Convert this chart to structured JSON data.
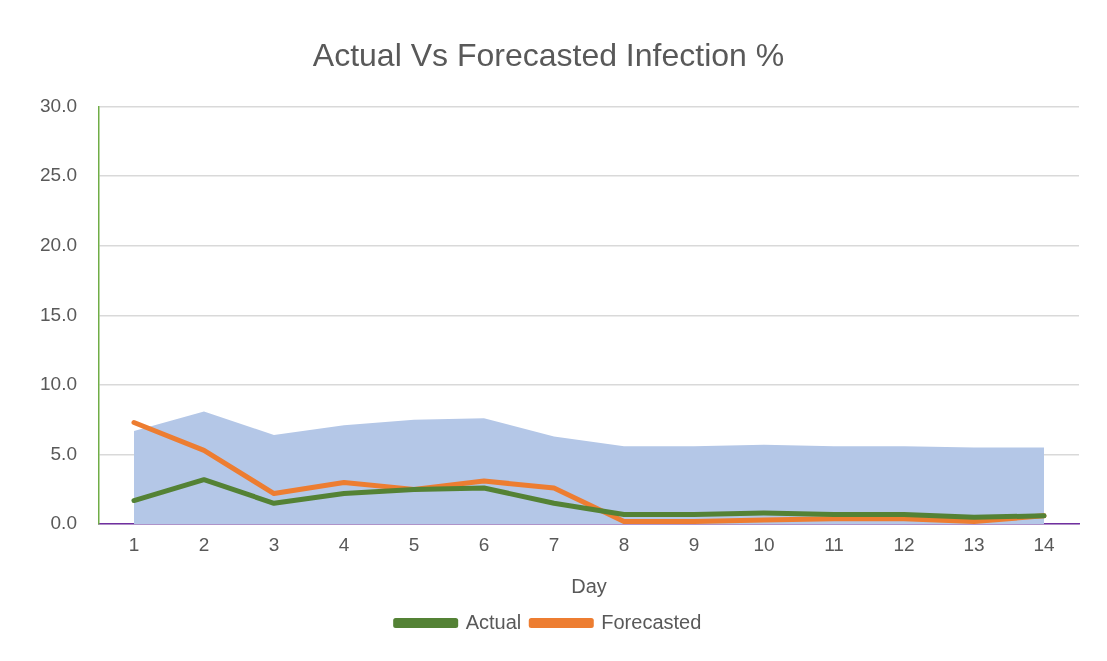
{
  "chart_data": {
    "type": "line",
    "title": "Actual Vs Forecasted Infection %",
    "xlabel": "Day",
    "categories": [
      "1",
      "2",
      "3",
      "4",
      "5",
      "6",
      "7",
      "8",
      "9",
      "10",
      "11",
      "12",
      "13",
      "14"
    ],
    "series": [
      {
        "type": "area",
        "color": "#b4c7e7",
        "values": [
          6.7,
          8.1,
          6.4,
          7.1,
          7.5,
          7.6,
          6.3,
          5.6,
          5.6,
          5.7,
          5.6,
          5.6,
          5.5,
          5.5
        ]
      },
      {
        "name": "Actual",
        "color": "#548235",
        "values": [
          1.7,
          3.2,
          1.5,
          2.2,
          2.5,
          2.6,
          1.5,
          0.7,
          0.7,
          0.8,
          0.7,
          0.7,
          0.5,
          0.6
        ]
      },
      {
        "name": "Forecasted",
        "color": "#ed7d31",
        "values": [
          7.3,
          5.3,
          2.2,
          3.0,
          2.5,
          3.1,
          2.6,
          0.2,
          0.2,
          0.3,
          0.4,
          0.4,
          0.2,
          0.6
        ]
      }
    ],
    "ylim": [
      0,
      30
    ],
    "yticks": [
      {
        "value": 0,
        "label": "0.0"
      },
      {
        "value": 5,
        "label": "5.0"
      },
      {
        "value": 10,
        "label": "10.0"
      },
      {
        "value": 15,
        "label": "15.0"
      },
      {
        "value": 20,
        "label": "20.0"
      },
      {
        "value": 25,
        "label": "25.0"
      },
      {
        "value": 30,
        "label": "30.0"
      }
    ],
    "grid": "y",
    "legend": "bottom"
  }
}
